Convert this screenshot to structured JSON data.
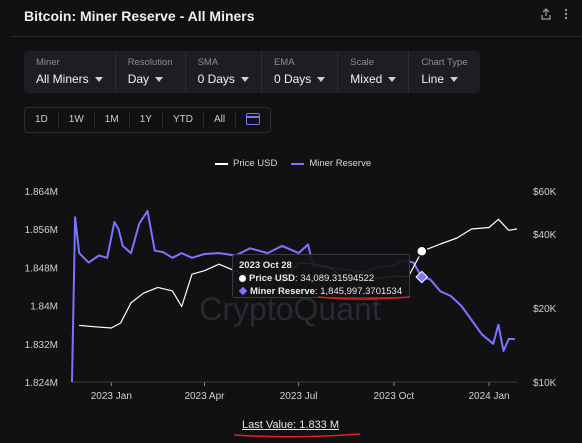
{
  "header": {
    "title": "Bitcoin: Miner Reserve - All Miners",
    "share_icon": "share-icon",
    "more_icon": "more-vertical-icon"
  },
  "selectors": [
    {
      "label": "Miner",
      "value": "All Miners"
    },
    {
      "label": "Resolution",
      "value": "Day"
    },
    {
      "label": "SMA",
      "value": "0 Days"
    },
    {
      "label": "EMA",
      "value": "0 Days"
    },
    {
      "label": "Scale",
      "value": "Mixed"
    },
    {
      "label": "Chart Type",
      "value": "Line"
    }
  ],
  "ranges": [
    "1D",
    "1W",
    "1M",
    "1Y",
    "YTD",
    "All"
  ],
  "calendar_icon": "calendar-icon",
  "legend": {
    "price": "Price USD",
    "reserve": "Miner Reserve"
  },
  "colors": {
    "price": "#ffffff",
    "reserve": "#7b74ff",
    "annotation": "#e02020"
  },
  "watermark": "CryptoQuant",
  "tooltip": {
    "date": "2023 Oct 28",
    "price_label": "Price USD",
    "price_value": "34,089.31594522",
    "reserve_label": "Miner Reserve",
    "reserve_value": "1,845,997.3701534"
  },
  "footer": {
    "last_value": "Last Value: 1.833 M"
  },
  "chart_data": {
    "type": "line",
    "left_axis": {
      "ticks": [
        "1.864M",
        "1.856M",
        "1.848M",
        "1.84M",
        "1.832M",
        "1.824M"
      ],
      "range": [
        1824000,
        1864000
      ]
    },
    "right_axis": {
      "ticks": [
        "$60K",
        "$40K",
        "$20K",
        "$10K"
      ],
      "scale": "log"
    },
    "x_ticks": [
      "2023 Jan",
      "2023 Apr",
      "2023 Jul",
      "2023 Oct",
      "2024 Jan"
    ],
    "series": [
      {
        "name": "Miner Reserve",
        "axis": "left",
        "x": [
          "2022-11-24",
          "2022-11-27",
          "2022-12-01",
          "2022-12-10",
          "2022-12-20",
          "2022-12-28",
          "2023-01-04",
          "2023-01-08",
          "2023-01-12",
          "2023-01-20",
          "2023-01-28",
          "2023-02-05",
          "2023-02-12",
          "2023-02-20",
          "2023-03-01",
          "2023-03-10",
          "2023-03-20",
          "2023-04-01",
          "2023-04-15",
          "2023-05-01",
          "2023-05-15",
          "2023-06-01",
          "2023-06-15",
          "2023-07-01",
          "2023-07-10",
          "2023-07-15",
          "2023-08-01",
          "2023-08-15",
          "2023-09-01",
          "2023-09-15",
          "2023-10-01",
          "2023-10-10",
          "2023-10-20",
          "2023-10-28",
          "2023-11-05",
          "2023-11-15",
          "2023-11-25",
          "2023-12-05",
          "2023-12-15",
          "2023-12-25",
          "2024-01-05",
          "2024-01-10",
          "2024-01-15",
          "2024-01-20",
          "2024-01-26"
        ],
        "y": [
          1824000,
          1858500,
          1851000,
          1849000,
          1850500,
          1850000,
          1857500,
          1856000,
          1852500,
          1851000,
          1857200,
          1859800,
          1851500,
          1851200,
          1850000,
          1851000,
          1850000,
          1850800,
          1851000,
          1850500,
          1852000,
          1851000,
          1852500,
          1851000,
          1852800,
          1848500,
          1848000,
          1847500,
          1847000,
          1848000,
          1848500,
          1849500,
          1849000,
          1845997,
          1845500,
          1843000,
          1842000,
          1840000,
          1837000,
          1834000,
          1832000,
          1836000,
          1830500,
          1833000,
          1833000
        ]
      },
      {
        "name": "Price USD",
        "axis": "right",
        "x": [
          "2022-12-01",
          "2022-12-15",
          "2023-01-01",
          "2023-01-10",
          "2023-01-20",
          "2023-02-01",
          "2023-02-15",
          "2023-03-01",
          "2023-03-10",
          "2023-03-20",
          "2023-04-01",
          "2023-04-15",
          "2023-05-01",
          "2023-05-15",
          "2023-06-01",
          "2023-06-15",
          "2023-07-01",
          "2023-07-15",
          "2023-08-01",
          "2023-08-15",
          "2023-09-01",
          "2023-09-15",
          "2023-10-01",
          "2023-10-15",
          "2023-10-28",
          "2023-11-15",
          "2023-12-01",
          "2023-12-15",
          "2024-01-01",
          "2024-01-10",
          "2024-01-20",
          "2024-01-28"
        ],
        "y": [
          17000,
          16800,
          16600,
          17400,
          21000,
          23000,
          24300,
          23500,
          20300,
          27500,
          28400,
          30200,
          28300,
          26900,
          27000,
          25500,
          30500,
          30300,
          29200,
          26100,
          25900,
          26500,
          27000,
          26800,
          34089,
          36500,
          38600,
          42000,
          42600,
          46000,
          41500,
          42000
        ]
      }
    ]
  }
}
